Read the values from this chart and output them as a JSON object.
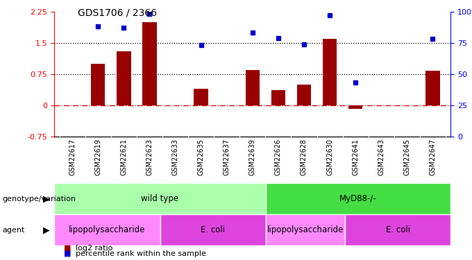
{
  "title": "GDS1706 / 2366",
  "samples": [
    "GSM22617",
    "GSM22619",
    "GSM22621",
    "GSM22623",
    "GSM22633",
    "GSM22635",
    "GSM22637",
    "GSM22639",
    "GSM22626",
    "GSM22628",
    "GSM22630",
    "GSM22641",
    "GSM22643",
    "GSM22645",
    "GSM22647"
  ],
  "log2_ratio": [
    0.0,
    1.0,
    1.3,
    2.0,
    0.0,
    0.4,
    0.0,
    0.85,
    0.37,
    0.5,
    1.6,
    -0.08,
    0.0,
    0.0,
    0.83
  ],
  "percentile": [
    null,
    88,
    87,
    98,
    null,
    73,
    null,
    83,
    79,
    74,
    97,
    43,
    null,
    null,
    78
  ],
  "bar_color": "#990000",
  "dot_color": "#0000cc",
  "ylim_left": [
    -0.75,
    2.25
  ],
  "ylim_right": [
    0,
    100
  ],
  "yticks_left": [
    -0.75,
    0,
    0.75,
    1.5,
    2.25
  ],
  "yticks_right": [
    0,
    25,
    50,
    75,
    100
  ],
  "hlines": [
    0.0,
    0.75,
    1.5
  ],
  "hline_styles": [
    "dashdot",
    "dotted",
    "dotted"
  ],
  "hline_colors": [
    "#cc0000",
    "#000000",
    "#000000"
  ],
  "genotype_groups": [
    {
      "label": "wild type",
      "start": 0,
      "end": 8,
      "color": "#aaffaa"
    },
    {
      "label": "MyD88-/-",
      "start": 8,
      "end": 15,
      "color": "#44dd44"
    }
  ],
  "agent_groups": [
    {
      "label": "lipopolysaccharide",
      "start": 0,
      "end": 4,
      "color": "#ff88ff"
    },
    {
      "label": "E. coli",
      "start": 4,
      "end": 8,
      "color": "#dd44dd"
    },
    {
      "label": "lipopolysaccharide",
      "start": 8,
      "end": 11,
      "color": "#ff88ff"
    },
    {
      "label": "E. coli",
      "start": 11,
      "end": 15,
      "color": "#dd44dd"
    }
  ],
  "legend_log2_label": "log2 ratio",
  "legend_pct_label": "percentile rank within the sample",
  "genotype_label": "genotype/variation",
  "agent_label": "agent",
  "bg_color": "#cccccc"
}
